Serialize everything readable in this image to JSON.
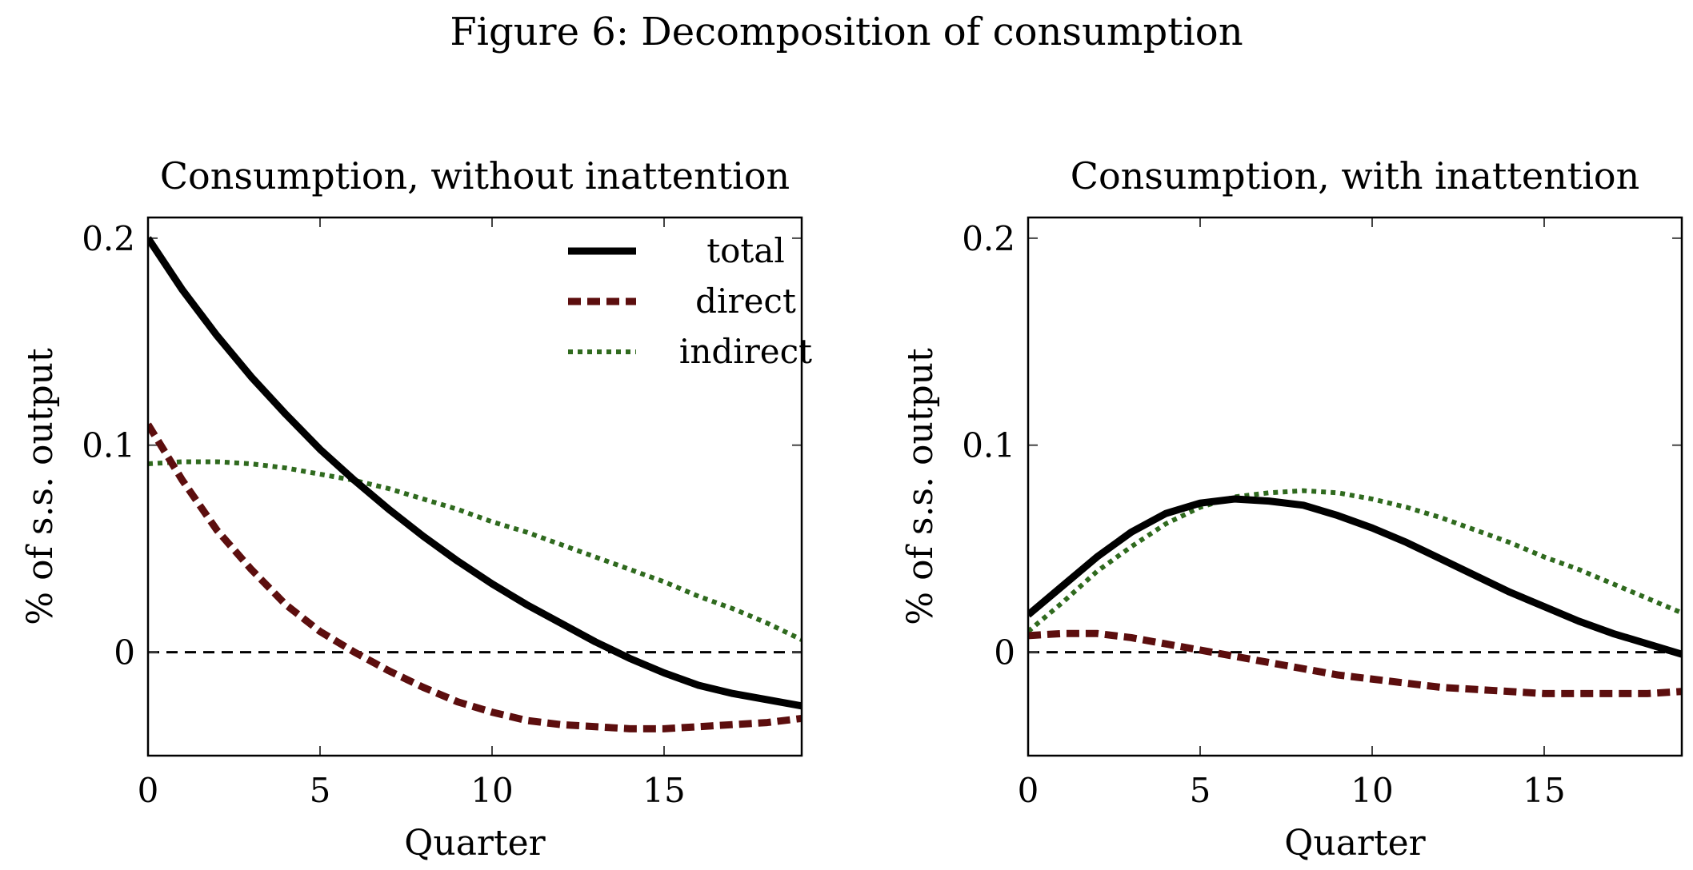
{
  "figure_title": "Figure 6: Decomposition of consumption",
  "colors": {
    "total": "#000000",
    "direct": "#5c0e0e",
    "indirect": "#2f6a1e",
    "zero_line": "#000000",
    "frame": "#000000"
  },
  "legend": {
    "position": "top-right",
    "panel": 0
  },
  "chart_data": [
    {
      "type": "line",
      "title": "Consumption, without inattention",
      "xlabel": "Quarter",
      "ylabel": "% of s.s. output",
      "xlim": [
        0,
        19
      ],
      "ylim": [
        -0.05,
        0.21
      ],
      "xticks": [
        0,
        5,
        10,
        15
      ],
      "xtick_labels": [
        "0",
        "5",
        "10",
        "15"
      ],
      "yticks": [
        0,
        0.1,
        0.2
      ],
      "ytick_labels": [
        "0",
        "0.1",
        "0.2"
      ],
      "grid": false,
      "zero_line": true,
      "x": [
        0,
        1,
        2,
        3,
        4,
        5,
        6,
        7,
        8,
        9,
        10,
        11,
        12,
        13,
        14,
        15,
        16,
        17,
        18,
        19
      ],
      "series": [
        {
          "name": "total",
          "key": "total",
          "style": "solid",
          "values": [
            0.2,
            0.175,
            0.153,
            0.133,
            0.115,
            0.098,
            0.083,
            0.069,
            0.056,
            0.044,
            0.033,
            0.023,
            0.014,
            0.005,
            -0.003,
            -0.01,
            -0.016,
            -0.02,
            -0.023,
            -0.026
          ]
        },
        {
          "name": "direct",
          "key": "direct",
          "style": "dashed",
          "values": [
            0.11,
            0.083,
            0.059,
            0.04,
            0.023,
            0.01,
            0.0,
            -0.009,
            -0.017,
            -0.024,
            -0.029,
            -0.033,
            -0.035,
            -0.036,
            -0.037,
            -0.037,
            -0.036,
            -0.035,
            -0.034,
            -0.032
          ]
        },
        {
          "name": "indirect",
          "key": "indirect",
          "style": "dotted",
          "values": [
            0.091,
            0.092,
            0.092,
            0.091,
            0.089,
            0.086,
            0.083,
            0.079,
            0.074,
            0.069,
            0.063,
            0.058,
            0.052,
            0.046,
            0.04,
            0.034,
            0.027,
            0.021,
            0.014,
            0.006
          ]
        }
      ]
    },
    {
      "type": "line",
      "title": "Consumption, with inattention",
      "xlabel": "Quarter",
      "ylabel": "% of s.s. output",
      "xlim": [
        0,
        19
      ],
      "ylim": [
        -0.05,
        0.21
      ],
      "xticks": [
        0,
        5,
        10,
        15
      ],
      "xtick_labels": [
        "0",
        "5",
        "10",
        "15"
      ],
      "yticks": [
        0,
        0.1,
        0.2
      ],
      "ytick_labels": [
        "0",
        "0.1",
        "0.2"
      ],
      "grid": false,
      "zero_line": true,
      "x": [
        0,
        1,
        2,
        3,
        4,
        5,
        6,
        7,
        8,
        9,
        10,
        11,
        12,
        13,
        14,
        15,
        16,
        17,
        18,
        19
      ],
      "series": [
        {
          "name": "total",
          "key": "total",
          "style": "solid",
          "values": [
            0.018,
            0.032,
            0.046,
            0.058,
            0.067,
            0.072,
            0.074,
            0.073,
            0.071,
            0.066,
            0.06,
            0.053,
            0.045,
            0.037,
            0.029,
            0.022,
            0.015,
            0.009,
            0.004,
            -0.001
          ]
        },
        {
          "name": "direct",
          "key": "direct",
          "style": "dashed",
          "values": [
            0.008,
            0.009,
            0.009,
            0.007,
            0.004,
            0.001,
            -0.002,
            -0.005,
            -0.008,
            -0.011,
            -0.013,
            -0.015,
            -0.017,
            -0.018,
            -0.019,
            -0.02,
            -0.02,
            -0.02,
            -0.02,
            -0.019
          ]
        },
        {
          "name": "indirect",
          "key": "indirect",
          "style": "dotted",
          "values": [
            0.01,
            0.024,
            0.039,
            0.051,
            0.062,
            0.07,
            0.075,
            0.077,
            0.078,
            0.077,
            0.074,
            0.07,
            0.065,
            0.059,
            0.053,
            0.046,
            0.04,
            0.033,
            0.026,
            0.019
          ]
        }
      ]
    }
  ]
}
